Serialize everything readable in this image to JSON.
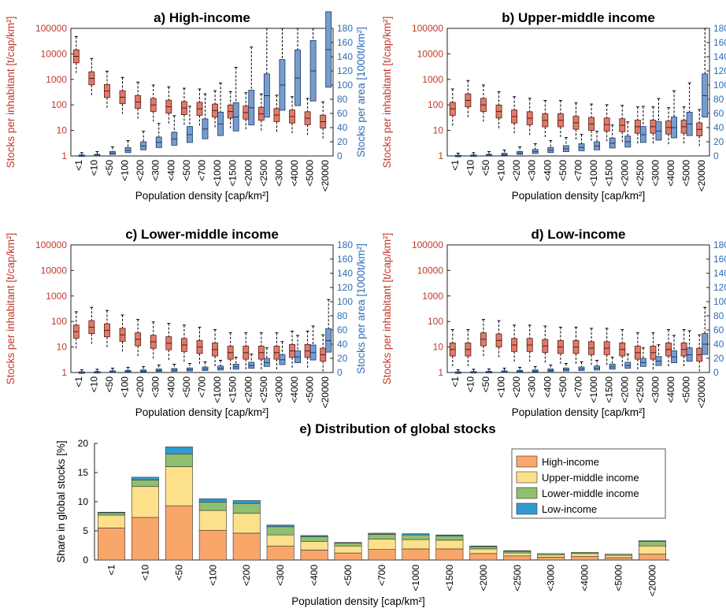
{
  "colors": {
    "left_axis": "#c0392b",
    "right_axis": "#2e6db4",
    "red_box": "#e07b6a",
    "blue_box": "#7a9ccc",
    "high_income": "#f9a66b",
    "upper_middle_income": "#fde08a",
    "lower_middle_income": "#8fbf6f",
    "low_income": "#2f9bd1"
  },
  "shared": {
    "categories": [
      "<1",
      "<10",
      "<50",
      "<100",
      "<200",
      "<300",
      "<400",
      "<500",
      "<700",
      "<1000",
      "<1500",
      "<2000",
      "<2500",
      "<3000",
      "<4000",
      "<5000",
      "<20000"
    ],
    "box_xlabel": "Population density [cap/km²]",
    "box_ylabel_left": "Stocks per inhabitant [t/cap/km²]",
    "box_ylabel_right": "Stocks per area [1000t/km²]",
    "left_ticks": [
      "1",
      "10",
      "100",
      "1000",
      "10000",
      "100000"
    ],
    "right_ticks": [
      "0",
      "20",
      "40",
      "60",
      "80",
      "100",
      "120",
      "140",
      "160",
      "180"
    ]
  },
  "chart_data": [
    {
      "type": "box",
      "title": "a) High-income",
      "left_axis": {
        "scale": "log",
        "ylim": [
          1,
          100000
        ]
      },
      "right_axis": {
        "scale": "linear",
        "ylim": [
          0,
          180
        ]
      },
      "per_inhabitant_median": [
        8000,
        1100,
        350,
        200,
        130,
        100,
        85,
        75,
        70,
        60,
        55,
        50,
        45,
        40,
        35,
        30,
        22
      ],
      "per_area_median": [
        0.3,
        1,
        4,
        8,
        14,
        19,
        24,
        30,
        38,
        45,
        55,
        68,
        85,
        100,
        110,
        120,
        150
      ]
    },
    {
      "type": "box",
      "title": "b) Upper-middle income",
      "left_axis": {
        "scale": "log",
        "ylim": [
          1,
          100000
        ]
      },
      "right_axis": {
        "scale": "linear",
        "ylim": [
          0,
          180
        ]
      },
      "per_inhabitant_median": [
        70,
        150,
        100,
        55,
        35,
        30,
        25,
        25,
        20,
        18,
        17,
        16,
        14,
        14,
        13,
        14,
        11
      ],
      "per_area_median": [
        0,
        0.3,
        1,
        2,
        4,
        6,
        8,
        10,
        12,
        14,
        18,
        20,
        30,
        35,
        40,
        45,
        85
      ]
    },
    {
      "type": "box",
      "title": "c) Lower-middle income",
      "left_axis": {
        "scale": "log",
        "ylim": [
          1,
          100000
        ]
      },
      "right_axis": {
        "scale": "linear",
        "ylim": [
          0,
          180
        ]
      },
      "per_inhabitant_median": [
        40,
        60,
        45,
        30,
        20,
        16,
        14,
        12,
        10,
        8,
        6,
        6,
        6,
        6,
        7,
        7,
        5
      ],
      "per_area_median": [
        0,
        0.3,
        1,
        1.5,
        2,
        3,
        3.5,
        4,
        5,
        6,
        8,
        10,
        14,
        18,
        22,
        28,
        45
      ]
    },
    {
      "type": "box",
      "title": "d) Low-income",
      "left_axis": {
        "scale": "log",
        "ylim": [
          1,
          100000
        ]
      },
      "right_axis": {
        "scale": "linear",
        "ylim": [
          0,
          180
        ]
      },
      "per_inhabitant_median": [
        8,
        8,
        20,
        18,
        12,
        12,
        11,
        10,
        10,
        9,
        9,
        8,
        6,
        6,
        8,
        8,
        5
      ],
      "per_area_median": [
        0,
        0.3,
        0.5,
        1,
        1.5,
        2,
        3,
        4,
        5,
        6,
        8,
        10,
        14,
        16,
        22,
        25,
        40
      ]
    },
    {
      "type": "bar",
      "stacked": true,
      "title": "e) Distribution of global stocks",
      "xlabel": "Population density [cap/km²]",
      "ylabel": "Share in global stocks [%]",
      "ylim": [
        0,
        20
      ],
      "yticks": [
        "0",
        "5",
        "10",
        "15",
        "20"
      ],
      "legend_position": "top-right",
      "series": [
        {
          "name": "High-income",
          "values": [
            5.5,
            7.3,
            9.3,
            5.1,
            4.6,
            2.4,
            1.7,
            1.2,
            1.8,
            1.9,
            1.9,
            1.1,
            0.7,
            0.5,
            0.6,
            0.4,
            1.0
          ]
        },
        {
          "name": "Upper-middle income",
          "values": [
            2.2,
            5.3,
            6.7,
            3.4,
            3.4,
            1.9,
            1.5,
            1.2,
            1.8,
            1.6,
            1.5,
            0.8,
            0.5,
            0.4,
            0.5,
            0.4,
            1.4
          ]
        },
        {
          "name": "Lower-middle income",
          "values": [
            0.4,
            1.1,
            2.2,
            1.4,
            1.7,
            1.4,
            0.8,
            0.5,
            0.8,
            0.8,
            0.7,
            0.4,
            0.3,
            0.2,
            0.2,
            0.2,
            0.8
          ]
        },
        {
          "name": "Low-income",
          "values": [
            0.1,
            0.5,
            1.2,
            0.6,
            0.5,
            0.3,
            0.2,
            0.1,
            0.2,
            0.2,
            0.2,
            0.1,
            0.1,
            0.0,
            0.0,
            0.0,
            0.1
          ]
        }
      ]
    }
  ]
}
